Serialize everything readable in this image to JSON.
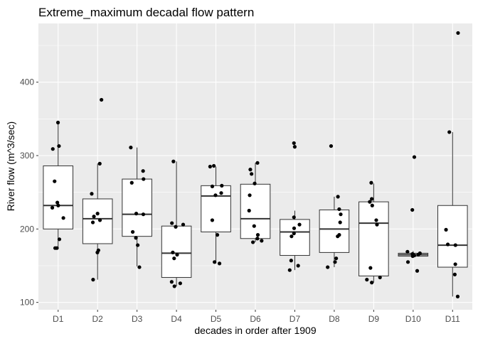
{
  "chart_data": {
    "type": "box",
    "title": "Extreme_maximum decadal flow pattern",
    "xlabel": "decades in order after 1909",
    "ylabel": "River flow (m^3/sec)",
    "ylim": [
      90,
      480
    ],
    "yticks": [
      100,
      200,
      300,
      400
    ],
    "grid": true,
    "categories": [
      "D1",
      "D2",
      "D3",
      "D4",
      "D5",
      "D6",
      "D7",
      "D8",
      "D9",
      "D10",
      "D11"
    ],
    "boxes": [
      {
        "min": 174,
        "q1": 200,
        "median": 232,
        "q3": 286,
        "max": 345
      },
      {
        "min": 131,
        "q1": 180,
        "median": 214,
        "q3": 241,
        "max": 289
      },
      {
        "min": 149,
        "q1": 190,
        "median": 220,
        "q3": 268,
        "max": 311
      },
      {
        "min": 122,
        "q1": 134,
        "median": 167,
        "q3": 204,
        "max": 292
      },
      {
        "min": 153,
        "q1": 196,
        "median": 245,
        "q3": 259,
        "max": 285
      },
      {
        "min": 182,
        "q1": 187,
        "median": 214,
        "q3": 261,
        "max": 290
      },
      {
        "min": 144,
        "q1": 164,
        "median": 196,
        "q3": 213,
        "max": 225
      },
      {
        "min": 148,
        "q1": 168,
        "median": 200,
        "q3": 226,
        "max": 244
      },
      {
        "min": 127,
        "q1": 136,
        "median": 208,
        "q3": 237,
        "max": 262
      },
      {
        "min": 162,
        "q1": 163,
        "median": 165,
        "q3": 167,
        "max": 170
      },
      {
        "min": 108,
        "q1": 148,
        "median": 178,
        "q3": 232,
        "max": 332
      }
    ],
    "points": [
      {
        "x": "D1",
        "y": [
          345,
          313,
          309,
          265,
          236,
          232,
          229,
          215,
          186,
          174,
          174
        ]
      },
      {
        "x": "D2",
        "y": [
          376,
          289,
          248,
          221,
          217,
          212,
          209,
          171,
          168,
          131
        ]
      },
      {
        "x": "D3",
        "y": [
          311,
          279,
          268,
          263,
          221,
          220,
          196,
          188,
          178,
          148
        ]
      },
      {
        "x": "D4",
        "y": [
          292,
          208,
          206,
          203,
          168,
          165,
          160,
          128,
          126,
          122
        ]
      },
      {
        "x": "D5",
        "y": [
          286,
          285,
          259,
          258,
          249,
          246,
          212,
          192,
          155,
          153
        ]
      },
      {
        "x": "D6",
        "y": [
          290,
          281,
          275,
          262,
          246,
          225,
          204,
          192,
          187,
          184,
          182
        ]
      },
      {
        "x": "D7",
        "y": [
          317,
          312,
          216,
          206,
          201,
          194,
          190,
          157,
          150,
          144
        ]
      },
      {
        "x": "D8",
        "y": [
          313,
          244,
          227,
          220,
          209,
          192,
          190,
          160,
          155,
          148
        ]
      },
      {
        "x": "D9",
        "y": [
          263,
          241,
          237,
          232,
          212,
          206,
          147,
          134,
          131,
          127
        ]
      },
      {
        "x": "D10",
        "y": [
          298,
          226,
          169,
          167,
          166,
          165,
          164,
          163,
          155,
          143
        ]
      },
      {
        "x": "D11",
        "y": [
          467,
          332,
          199,
          179,
          178,
          152,
          138,
          108
        ]
      }
    ],
    "colors": {
      "panel": "#ebebeb",
      "grid_major": "#ffffff",
      "box_fill": "#ffffff",
      "box_line": "#333333",
      "point": "#000000"
    }
  }
}
